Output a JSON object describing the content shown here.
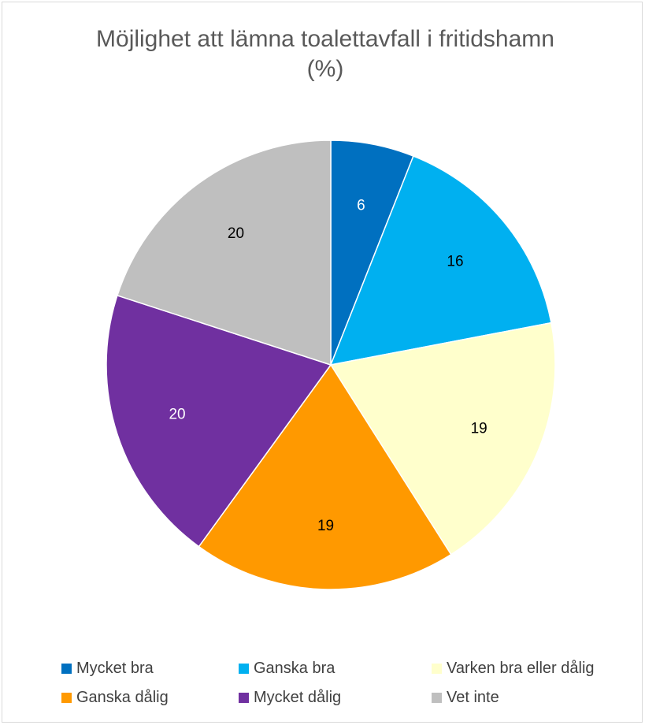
{
  "chart_data": {
    "type": "pie",
    "title": "Möjlighet att lämna toalettavfall i fritidshamn (%)",
    "title_lines": [
      "Möjlighet att lämna toalettavfall i fritidshamn",
      "(%)"
    ],
    "categories": [
      "Mycket bra",
      "Ganska bra",
      "Varken bra eller dålig",
      "Ganska dålig",
      "Mycket dålig",
      "Vet inte"
    ],
    "values": [
      6,
      16,
      19,
      19,
      20,
      20
    ],
    "colors": [
      "#0070c0",
      "#00b0f0",
      "#ffffcc",
      "#ff9900",
      "#7030a0",
      "#bfbfbf"
    ],
    "label_colors": [
      "#ffffff",
      "#000000",
      "#000000",
      "#000000",
      "#ffffff",
      "#000000"
    ],
    "legend_position": "bottom",
    "start_angle": "12 o'clock",
    "direction": "clockwise"
  }
}
